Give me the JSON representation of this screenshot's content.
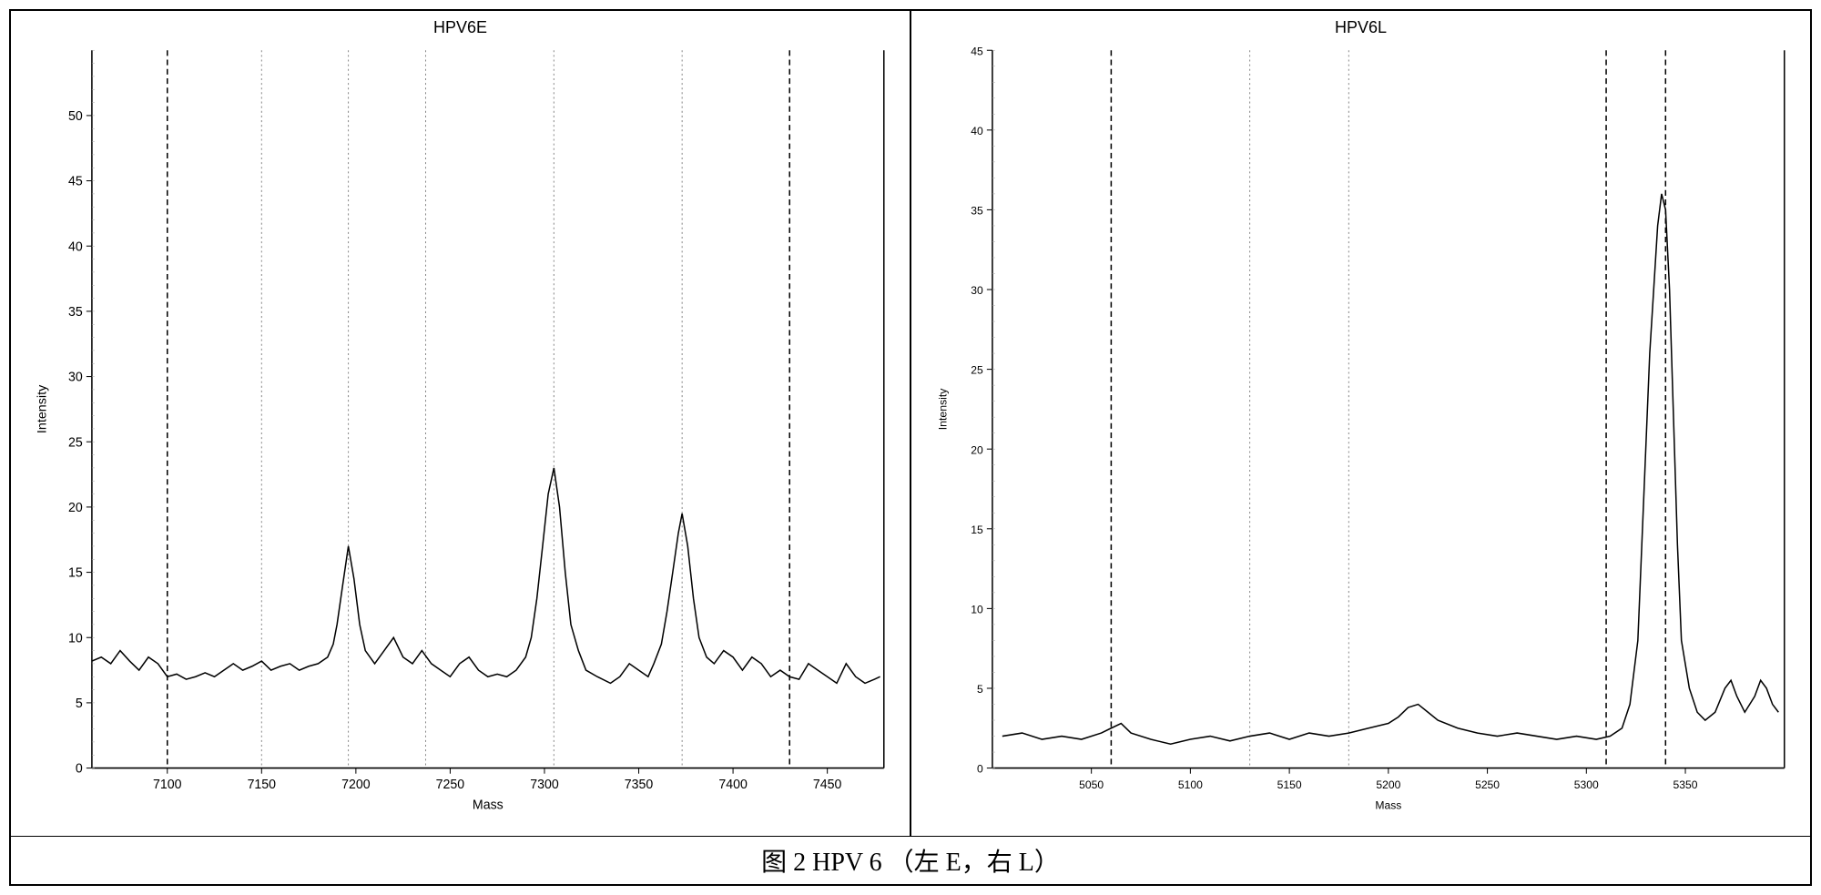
{
  "caption": "图 2 HPV 6 （左 E，右 L）",
  "left_chart": {
    "type": "line",
    "title": "HPV6E",
    "xlabel": "Mass",
    "ylabel": "Intensity",
    "title_fontsize": 18,
    "label_fontsize": 14,
    "tick_fontsize": 14,
    "xlim": [
      7060,
      7480
    ],
    "ylim": [
      0,
      55
    ],
    "xticks": [
      7100,
      7150,
      7200,
      7250,
      7300,
      7350,
      7400,
      7450
    ],
    "yticks": [
      0,
      5,
      10,
      15,
      20,
      25,
      30,
      35,
      40,
      45,
      50
    ],
    "vertical_dashed_lines": [
      7100,
      7430
    ],
    "vertical_dotted_lines": [
      7150,
      7196,
      7237,
      7305,
      7373,
      7480
    ],
    "line_color": "#000000",
    "dashed_color": "#000000",
    "dotted_color": "#888888",
    "background_color": "#ffffff",
    "line_width": 1.5,
    "data": [
      [
        7060,
        8.2
      ],
      [
        7065,
        8.5
      ],
      [
        7070,
        8.0
      ],
      [
        7075,
        9.0
      ],
      [
        7080,
        8.2
      ],
      [
        7085,
        7.5
      ],
      [
        7090,
        8.5
      ],
      [
        7095,
        8.0
      ],
      [
        7100,
        7.0
      ],
      [
        7105,
        7.2
      ],
      [
        7110,
        6.8
      ],
      [
        7115,
        7.0
      ],
      [
        7120,
        7.3
      ],
      [
        7125,
        7.0
      ],
      [
        7130,
        7.5
      ],
      [
        7135,
        8.0
      ],
      [
        7140,
        7.5
      ],
      [
        7145,
        7.8
      ],
      [
        7150,
        8.2
      ],
      [
        7155,
        7.5
      ],
      [
        7160,
        7.8
      ],
      [
        7165,
        8.0
      ],
      [
        7170,
        7.5
      ],
      [
        7175,
        7.8
      ],
      [
        7180,
        8.0
      ],
      [
        7185,
        8.5
      ],
      [
        7188,
        9.5
      ],
      [
        7190,
        11.0
      ],
      [
        7193,
        14.0
      ],
      [
        7196,
        17.0
      ],
      [
        7199,
        14.5
      ],
      [
        7202,
        11.0
      ],
      [
        7205,
        9.0
      ],
      [
        7210,
        8.0
      ],
      [
        7215,
        9.0
      ],
      [
        7220,
        10.0
      ],
      [
        7225,
        8.5
      ],
      [
        7230,
        8.0
      ],
      [
        7235,
        9.0
      ],
      [
        7240,
        8.0
      ],
      [
        7245,
        7.5
      ],
      [
        7250,
        7.0
      ],
      [
        7255,
        8.0
      ],
      [
        7260,
        8.5
      ],
      [
        7265,
        7.5
      ],
      [
        7270,
        7.0
      ],
      [
        7275,
        7.2
      ],
      [
        7280,
        7.0
      ],
      [
        7285,
        7.5
      ],
      [
        7290,
        8.5
      ],
      [
        7293,
        10.0
      ],
      [
        7296,
        13.0
      ],
      [
        7299,
        17.0
      ],
      [
        7302,
        21.0
      ],
      [
        7305,
        23.0
      ],
      [
        7308,
        20.0
      ],
      [
        7311,
        15.0
      ],
      [
        7314,
        11.0
      ],
      [
        7318,
        9.0
      ],
      [
        7322,
        7.5
      ],
      [
        7328,
        7.0
      ],
      [
        7335,
        6.5
      ],
      [
        7340,
        7.0
      ],
      [
        7345,
        8.0
      ],
      [
        7350,
        7.5
      ],
      [
        7355,
        7.0
      ],
      [
        7358,
        8.0
      ],
      [
        7362,
        9.5
      ],
      [
        7365,
        12.0
      ],
      [
        7368,
        15.0
      ],
      [
        7371,
        18.0
      ],
      [
        7373,
        19.5
      ],
      [
        7376,
        17.0
      ],
      [
        7379,
        13.0
      ],
      [
        7382,
        10.0
      ],
      [
        7386,
        8.5
      ],
      [
        7390,
        8.0
      ],
      [
        7395,
        9.0
      ],
      [
        7400,
        8.5
      ],
      [
        7405,
        7.5
      ],
      [
        7410,
        8.5
      ],
      [
        7415,
        8.0
      ],
      [
        7420,
        7.0
      ],
      [
        7425,
        7.5
      ],
      [
        7430,
        7.0
      ],
      [
        7435,
        6.8
      ],
      [
        7440,
        8.0
      ],
      [
        7445,
        7.5
      ],
      [
        7450,
        7.0
      ],
      [
        7455,
        6.5
      ],
      [
        7460,
        8.0
      ],
      [
        7465,
        7.0
      ],
      [
        7470,
        6.5
      ],
      [
        7475,
        6.8
      ],
      [
        7478,
        7.0
      ]
    ]
  },
  "right_chart": {
    "type": "line",
    "title": "HPV6L",
    "xlabel": "Mass",
    "ylabel": "Intensity",
    "title_fontsize": 18,
    "label_fontsize": 12,
    "tick_fontsize": 12,
    "xlim": [
      5000,
      5400
    ],
    "ylim": [
      0,
      45
    ],
    "xticks": [
      5050,
      5100,
      5150,
      5200,
      5250,
      5300,
      5350
    ],
    "yticks": [
      0,
      5,
      10,
      15,
      20,
      25,
      30,
      35,
      40,
      45
    ],
    "vertical_dashed_lines": [
      5060,
      5310,
      5340
    ],
    "vertical_dotted_lines": [
      5130,
      5180
    ],
    "line_color": "#000000",
    "dashed_color": "#000000",
    "dotted_color": "#888888",
    "background_color": "#ffffff",
    "line_width": 1.5,
    "data": [
      [
        5005,
        2.0
      ],
      [
        5015,
        2.2
      ],
      [
        5025,
        1.8
      ],
      [
        5035,
        2.0
      ],
      [
        5045,
        1.8
      ],
      [
        5055,
        2.2
      ],
      [
        5060,
        2.5
      ],
      [
        5065,
        2.8
      ],
      [
        5070,
        2.2
      ],
      [
        5080,
        1.8
      ],
      [
        5090,
        1.5
      ],
      [
        5100,
        1.8
      ],
      [
        5110,
        2.0
      ],
      [
        5120,
        1.7
      ],
      [
        5130,
        2.0
      ],
      [
        5140,
        2.2
      ],
      [
        5150,
        1.8
      ],
      [
        5160,
        2.2
      ],
      [
        5170,
        2.0
      ],
      [
        5180,
        2.2
      ],
      [
        5190,
        2.5
      ],
      [
        5200,
        2.8
      ],
      [
        5205,
        3.2
      ],
      [
        5210,
        3.8
      ],
      [
        5215,
        4.0
      ],
      [
        5220,
        3.5
      ],
      [
        5225,
        3.0
      ],
      [
        5235,
        2.5
      ],
      [
        5245,
        2.2
      ],
      [
        5255,
        2.0
      ],
      [
        5265,
        2.2
      ],
      [
        5275,
        2.0
      ],
      [
        5285,
        1.8
      ],
      [
        5295,
        2.0
      ],
      [
        5305,
        1.8
      ],
      [
        5312,
        2.0
      ],
      [
        5318,
        2.5
      ],
      [
        5322,
        4.0
      ],
      [
        5326,
        8.0
      ],
      [
        5328,
        14.0
      ],
      [
        5330,
        20.0
      ],
      [
        5332,
        26.0
      ],
      [
        5334,
        30.0
      ],
      [
        5336,
        34.0
      ],
      [
        5338,
        36.0
      ],
      [
        5340,
        35.0
      ],
      [
        5342,
        30.0
      ],
      [
        5344,
        22.0
      ],
      [
        5346,
        14.0
      ],
      [
        5348,
        8.0
      ],
      [
        5352,
        5.0
      ],
      [
        5356,
        3.5
      ],
      [
        5360,
        3.0
      ],
      [
        5365,
        3.5
      ],
      [
        5370,
        5.0
      ],
      [
        5373,
        5.5
      ],
      [
        5376,
        4.5
      ],
      [
        5380,
        3.5
      ],
      [
        5385,
        4.5
      ],
      [
        5388,
        5.5
      ],
      [
        5391,
        5.0
      ],
      [
        5394,
        4.0
      ],
      [
        5397,
        3.5
      ]
    ]
  }
}
